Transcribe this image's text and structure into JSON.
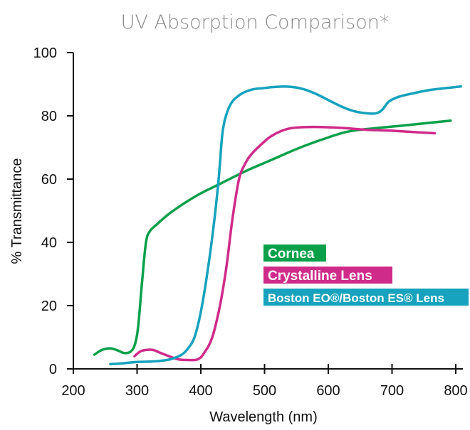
{
  "chart_data": {
    "type": "line",
    "title": "UV Absorption Comparison*",
    "xlabel": "Wavelength (nm)",
    "ylabel": "% Transmittance",
    "xlim": [
      200,
      800
    ],
    "ylim": [
      0,
      100
    ],
    "xticks": [
      200,
      300,
      400,
      500,
      600,
      700,
      800
    ],
    "yticks": [
      0,
      20,
      40,
      60,
      80,
      100
    ],
    "grid": false,
    "legend_position": "center-right",
    "series": [
      {
        "name": "Cornea",
        "color": "#0aa04a",
        "points": [
          [
            233,
            4.5
          ],
          [
            245,
            6
          ],
          [
            258,
            6.5
          ],
          [
            270,
            5.8
          ],
          [
            280,
            5
          ],
          [
            290,
            5.5
          ],
          [
            297,
            8
          ],
          [
            302,
            14
          ],
          [
            308,
            28
          ],
          [
            314,
            40
          ],
          [
            320,
            43.5
          ],
          [
            330,
            45.5
          ],
          [
            350,
            49
          ],
          [
            375,
            52.5
          ],
          [
            400,
            55.5
          ],
          [
            430,
            58.5
          ],
          [
            470,
            62.5
          ],
          [
            510,
            66
          ],
          [
            550,
            69.5
          ],
          [
            590,
            72.5
          ],
          [
            630,
            75
          ],
          [
            670,
            76
          ],
          [
            720,
            77
          ],
          [
            792,
            78.5
          ]
        ]
      },
      {
        "name": "Crystalline Lens",
        "color": "#cf2b8a",
        "points": [
          [
            296,
            4
          ],
          [
            305,
            5.5
          ],
          [
            315,
            6
          ],
          [
            325,
            6
          ],
          [
            335,
            5.2
          ],
          [
            350,
            4
          ],
          [
            365,
            3
          ],
          [
            380,
            2.8
          ],
          [
            395,
            3
          ],
          [
            405,
            5
          ],
          [
            418,
            10
          ],
          [
            430,
            20
          ],
          [
            440,
            32
          ],
          [
            450,
            48
          ],
          [
            460,
            60
          ],
          [
            470,
            65
          ],
          [
            480,
            68
          ],
          [
            495,
            71
          ],
          [
            510,
            73.5
          ],
          [
            530,
            75.5
          ],
          [
            550,
            76.3
          ],
          [
            580,
            76.5
          ],
          [
            620,
            76.2
          ],
          [
            660,
            75.6
          ],
          [
            700,
            75.3
          ],
          [
            740,
            74.8
          ],
          [
            767,
            74.5
          ]
        ]
      },
      {
        "name": "Boston EO®/Boston ES® Lens",
        "color": "#17a2bd",
        "points": [
          [
            258,
            1.5
          ],
          [
            280,
            1.8
          ],
          [
            300,
            2.2
          ],
          [
            320,
            2.3
          ],
          [
            340,
            2.6
          ],
          [
            355,
            3.2
          ],
          [
            370,
            4.5
          ],
          [
            380,
            6.5
          ],
          [
            390,
            10
          ],
          [
            400,
            18
          ],
          [
            410,
            30
          ],
          [
            420,
            45
          ],
          [
            427,
            58
          ],
          [
            430,
            65
          ],
          [
            435,
            76
          ],
          [
            445,
            83
          ],
          [
            460,
            86.5
          ],
          [
            480,
            88.3
          ],
          [
            500,
            88.8
          ],
          [
            520,
            89.2
          ],
          [
            540,
            89.2
          ],
          [
            560,
            88.5
          ],
          [
            580,
            87
          ],
          [
            600,
            85
          ],
          [
            620,
            83
          ],
          [
            640,
            81.5
          ],
          [
            660,
            80.8
          ],
          [
            675,
            80.8
          ],
          [
            685,
            82
          ],
          [
            695,
            84.5
          ],
          [
            710,
            86
          ],
          [
            730,
            87
          ],
          [
            760,
            88.2
          ],
          [
            786,
            88.8
          ],
          [
            808,
            89.3
          ]
        ]
      }
    ]
  },
  "legend": {
    "items": [
      {
        "label": "Cornea",
        "color": "#0aa04a"
      },
      {
        "label": "Crystalline Lens",
        "color": "#cf2b8a"
      },
      {
        "label": "Boston EO®/Boston ES® Lens",
        "color": "#17a2bd"
      }
    ]
  },
  "title_color": "#888888"
}
